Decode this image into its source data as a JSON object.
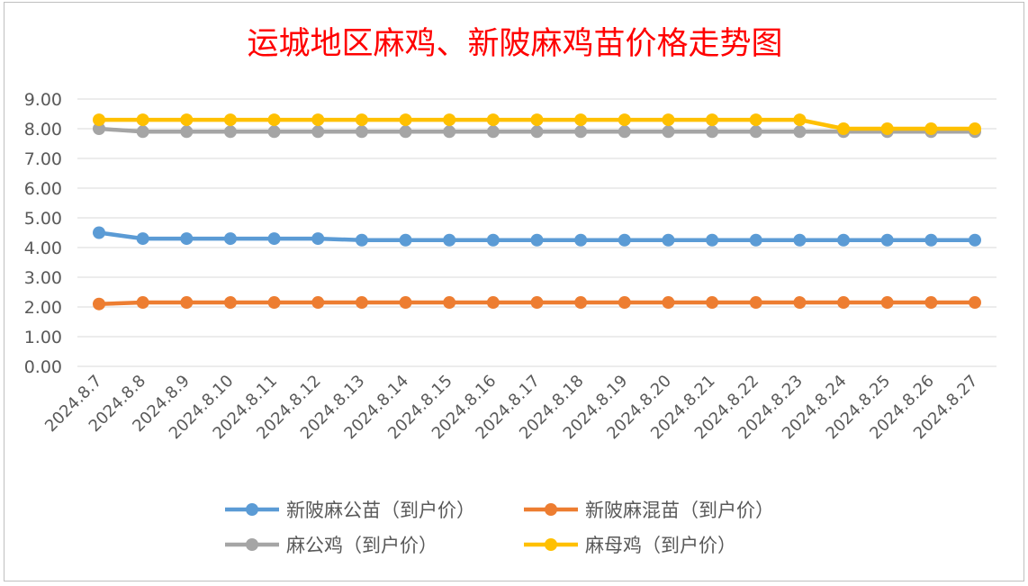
{
  "chart_data": {
    "type": "line",
    "title": "运城地区麻鸡、新陂麻鸡苗价格走势图",
    "categories": [
      "2024.8.7",
      "2024.8.8",
      "2024.8.9",
      "2024.8.10",
      "2024.8.11",
      "2024.8.12",
      "2024.8.13",
      "2024.8.14",
      "2024.8.15",
      "2024.8.16",
      "2024.8.17",
      "2024.8.18",
      "2024.8.19",
      "2024.8.20",
      "2024.8.21",
      "2024.8.22",
      "2024.8.23",
      "2024.8.24",
      "2024.8.25",
      "2024.8.26",
      "2024.8.27"
    ],
    "ylim": [
      0,
      9
    ],
    "yticks": [
      "0.00",
      "1.00",
      "2.00",
      "3.00",
      "4.00",
      "5.00",
      "6.00",
      "7.00",
      "8.00",
      "9.00"
    ],
    "grid": true,
    "legend_position": "bottom",
    "series": [
      {
        "name": "新陂麻公苗（到户价）",
        "color": "#5b9bd5",
        "values": [
          4.5,
          4.3,
          4.3,
          4.3,
          4.3,
          4.3,
          4.25,
          4.25,
          4.25,
          4.25,
          4.25,
          4.25,
          4.25,
          4.25,
          4.25,
          4.25,
          4.25,
          4.25,
          4.25,
          4.25,
          4.25
        ]
      },
      {
        "name": "新陂麻混苗（到户价）",
        "color": "#ed7d31",
        "values": [
          2.1,
          2.15,
          2.15,
          2.15,
          2.15,
          2.15,
          2.15,
          2.15,
          2.15,
          2.15,
          2.15,
          2.15,
          2.15,
          2.15,
          2.15,
          2.15,
          2.15,
          2.15,
          2.15,
          2.15,
          2.15
        ]
      },
      {
        "name": "麻公鸡（到户价）",
        "color": "#a5a5a5",
        "values": [
          8.0,
          7.9,
          7.9,
          7.9,
          7.9,
          7.9,
          7.9,
          7.9,
          7.9,
          7.9,
          7.9,
          7.9,
          7.9,
          7.9,
          7.9,
          7.9,
          7.9,
          7.9,
          7.9,
          7.9,
          7.9
        ]
      },
      {
        "name": "麻母鸡（到户价）",
        "color": "#ffc000",
        "values": [
          8.3,
          8.3,
          8.3,
          8.3,
          8.3,
          8.3,
          8.3,
          8.3,
          8.3,
          8.3,
          8.3,
          8.3,
          8.3,
          8.3,
          8.3,
          8.3,
          8.3,
          8.0,
          8.0,
          8.0,
          8.0
        ]
      }
    ]
  }
}
